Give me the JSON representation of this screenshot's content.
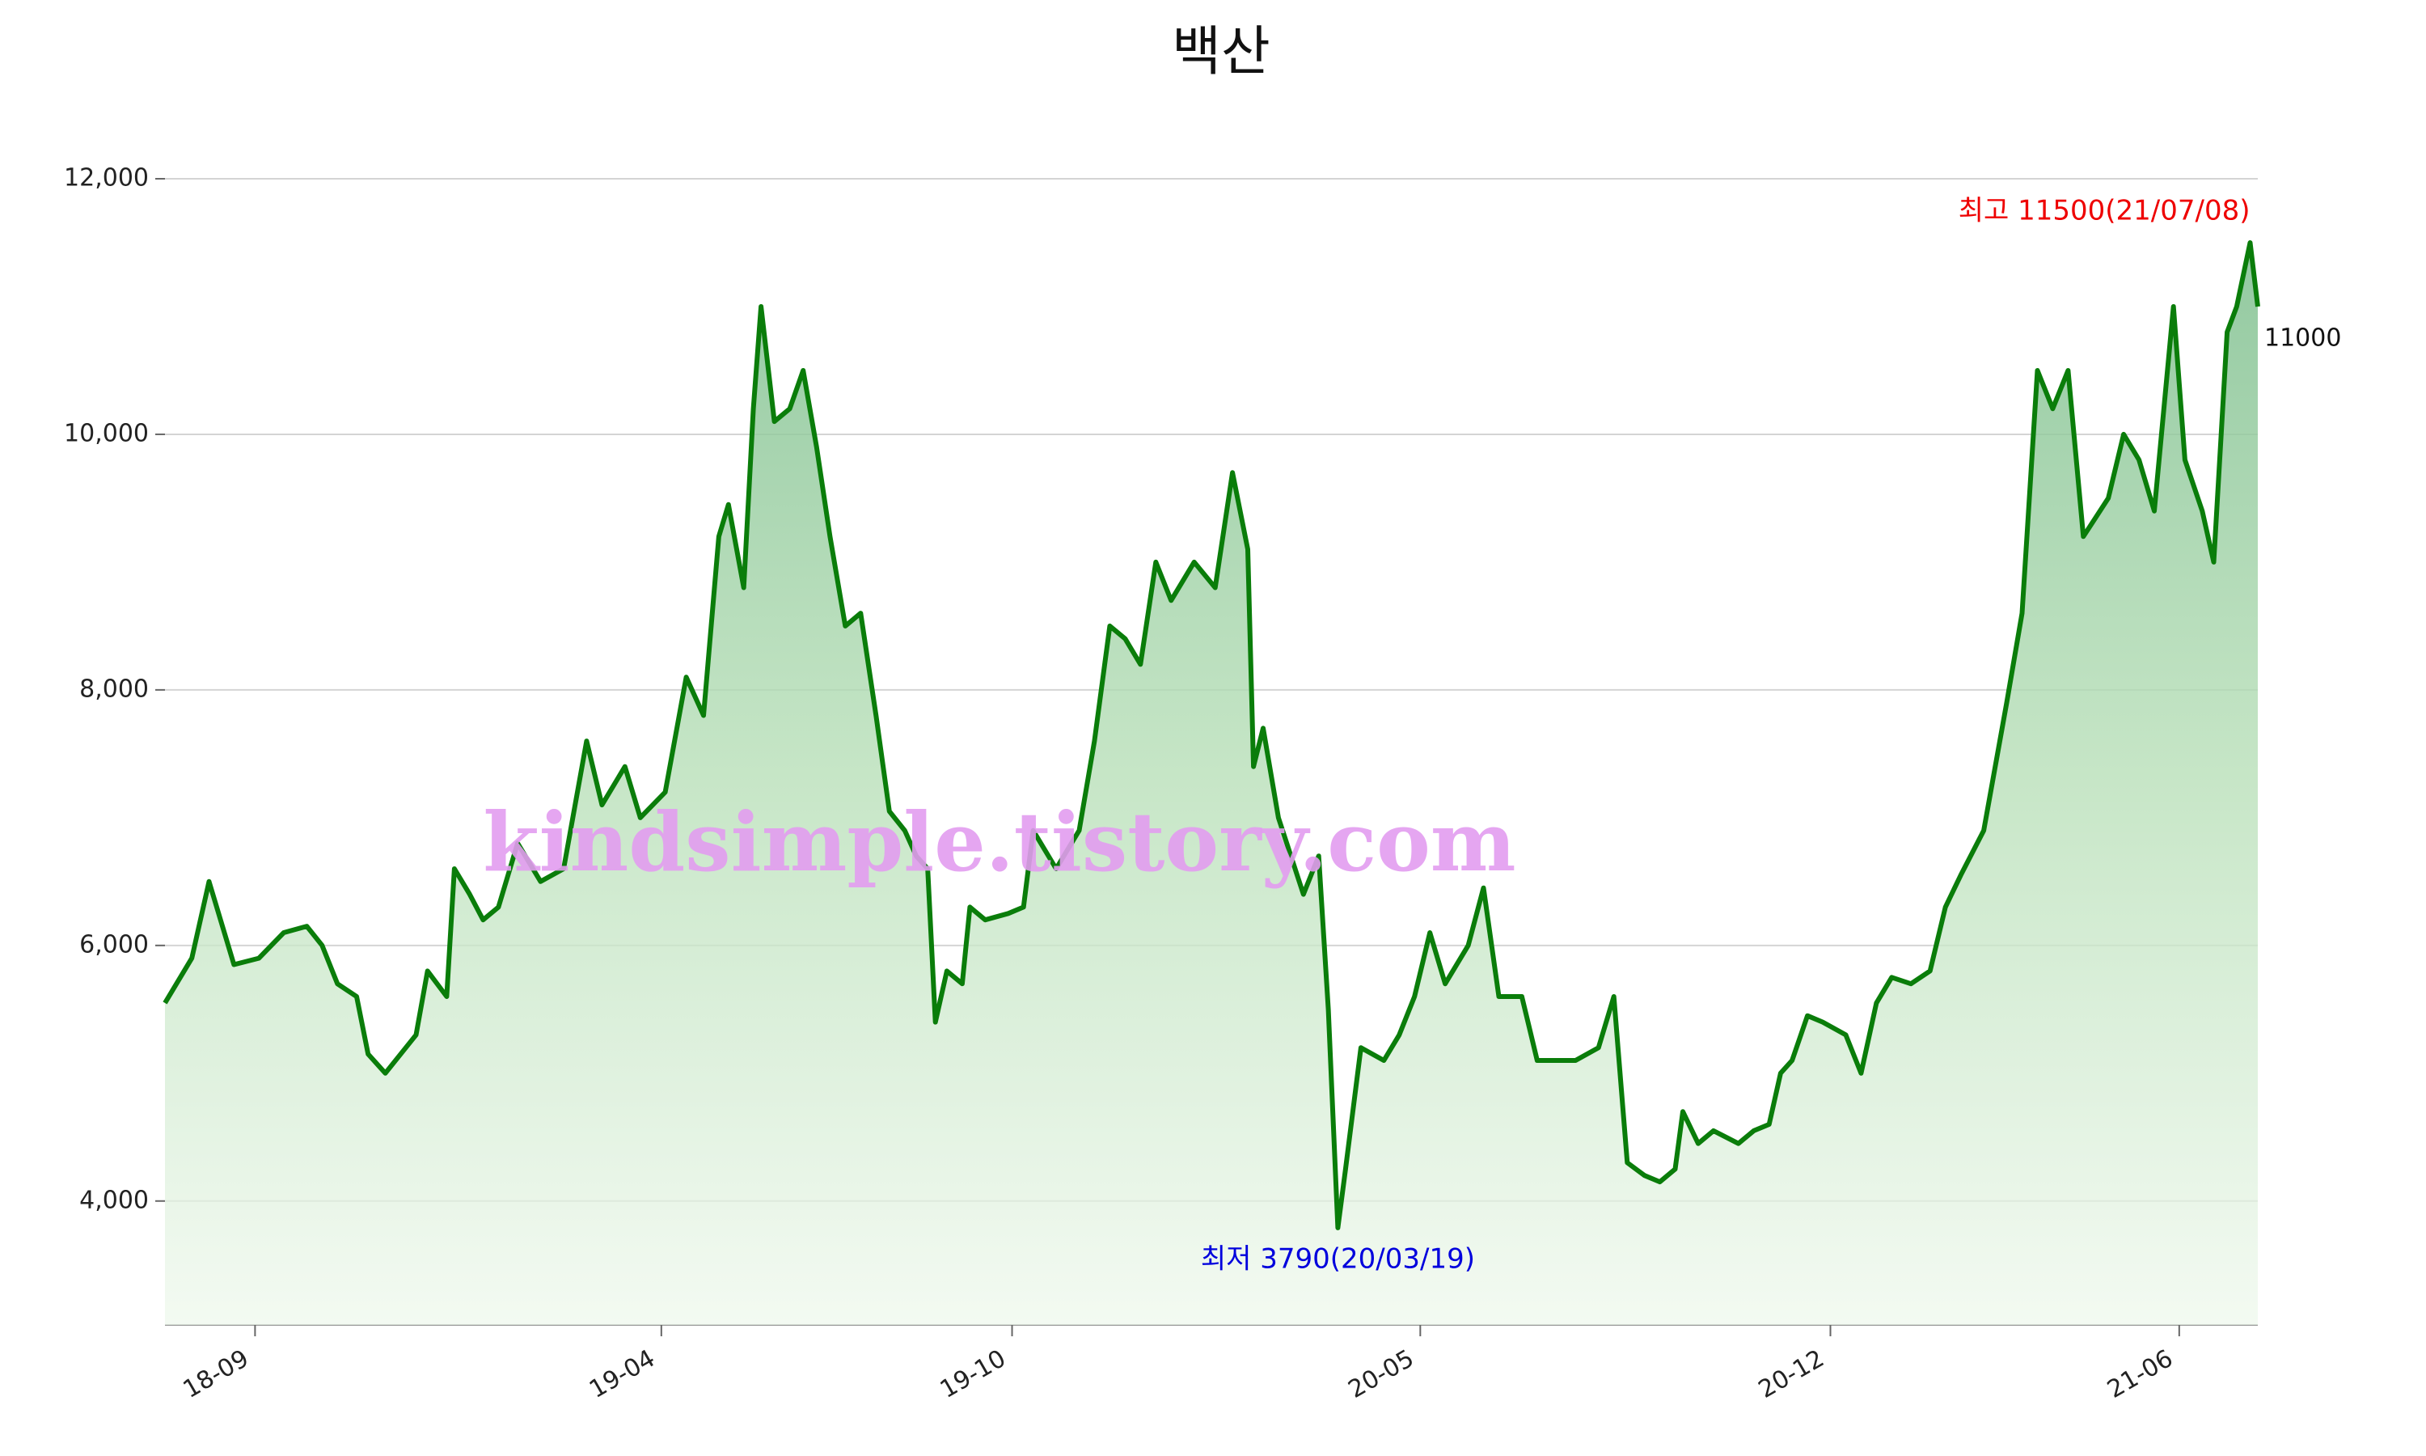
{
  "chart_data": {
    "type": "line",
    "title": "백산",
    "x": [
      "2018-07-16",
      "2018-07-30",
      "2018-08-08",
      "2018-08-21",
      "2018-09-03",
      "2018-09-16",
      "2018-09-28",
      "2018-10-06",
      "2018-10-14",
      "2018-10-24",
      "2018-10-30",
      "2018-11-08",
      "2018-11-24",
      "2018-11-30",
      "2018-12-10",
      "2018-12-14",
      "2018-12-22",
      "2018-12-29",
      "2019-01-06",
      "2019-01-16",
      "2019-01-28",
      "2019-02-09",
      "2019-02-21",
      "2019-03-01",
      "2019-03-13",
      "2019-03-21",
      "2019-04-03",
      "2019-04-14",
      "2019-04-23",
      "2019-05-01",
      "2019-05-06",
      "2019-05-14",
      "2019-05-19",
      "2019-05-23",
      "2019-05-30",
      "2019-06-07",
      "2019-06-14",
      "2019-06-21",
      "2019-06-28",
      "2019-07-06",
      "2019-07-14",
      "2019-07-22",
      "2019-07-29",
      "2019-08-06",
      "2019-08-12",
      "2019-08-18",
      "2019-08-22",
      "2019-08-28",
      "2019-09-05",
      "2019-09-09",
      "2019-09-17",
      "2019-09-29",
      "2019-10-07",
      "2019-10-12",
      "2019-10-24",
      "2019-11-05",
      "2019-11-13",
      "2019-11-21",
      "2019-11-29",
      "2019-12-07",
      "2019-12-15",
      "2019-12-23",
      "2020-01-04",
      "2020-01-15",
      "2020-01-24",
      "2020-02-01",
      "2020-02-04",
      "2020-02-09",
      "2020-02-17",
      "2020-03-01",
      "2020-03-09",
      "2020-03-14",
      "2020-03-19",
      "2020-03-23",
      "2020-03-31",
      "2020-04-12",
      "2020-04-20",
      "2020-04-28",
      "2020-05-06",
      "2020-05-14",
      "2020-05-26",
      "2020-06-03",
      "2020-06-11",
      "2020-06-23",
      "2020-07-01",
      "2020-07-09",
      "2020-07-21",
      "2020-08-02",
      "2020-08-10",
      "2020-08-17",
      "2020-08-26",
      "2020-09-03",
      "2020-09-11",
      "2020-09-15",
      "2020-09-23",
      "2020-10-01",
      "2020-10-14",
      "2020-10-22",
      "2020-10-30",
      "2020-11-05",
      "2020-11-11",
      "2020-11-19",
      "2020-11-27",
      "2020-12-09",
      "2020-12-17",
      "2020-12-25",
      "2021-01-02",
      "2021-01-12",
      "2021-01-22",
      "2021-01-30",
      "2021-02-07",
      "2021-02-19",
      "2021-03-03",
      "2021-03-11",
      "2021-03-19",
      "2021-03-27",
      "2021-04-04",
      "2021-04-12",
      "2021-04-25",
      "2021-05-03",
      "2021-05-11",
      "2021-05-19",
      "2021-05-29",
      "2021-06-04",
      "2021-06-13",
      "2021-06-19",
      "2021-06-26",
      "2021-07-01",
      "2021-07-08",
      "2021-07-12"
    ],
    "values": [
      5550,
      5900,
      6500,
      5850,
      5900,
      6100,
      6150,
      6000,
      5700,
      5600,
      5150,
      5000,
      5300,
      5800,
      5600,
      6600,
      6400,
      6200,
      6300,
      6800,
      6500,
      6600,
      7600,
      7100,
      7400,
      7000,
      7200,
      8100,
      7800,
      9200,
      9450,
      8800,
      10200,
      11000,
      10100,
      10200,
      10500,
      9900,
      9200,
      8500,
      8600,
      7800,
      7050,
      6900,
      6700,
      6600,
      5400,
      5800,
      5700,
      6300,
      6200,
      6250,
      6300,
      6900,
      6600,
      6900,
      7600,
      8500,
      8400,
      8200,
      9000,
      8700,
      9000,
      8800,
      9700,
      9100,
      7400,
      7700,
      7000,
      6400,
      6700,
      5500,
      3790,
      4250,
      5200,
      5100,
      5300,
      5600,
      6100,
      5700,
      6000,
      6450,
      5600,
      5600,
      5100,
      5100,
      5100,
      5200,
      5600,
      4300,
      4200,
      4150,
      4250,
      4700,
      4450,
      4550,
      4450,
      4550,
      4600,
      5000,
      5100,
      5450,
      5400,
      5300,
      5000,
      5550,
      5750,
      5700,
      5800,
      6300,
      6550,
      6900,
      7900,
      8600,
      10500,
      10200,
      10500,
      9200,
      9500,
      10000,
      9800,
      9400,
      11000,
      9800,
      9400,
      9000,
      10800,
      11000,
      11500,
      11000
    ],
    "color": "#0a7d0a",
    "xlim": [
      "2018-07-16",
      "2021-07-12"
    ],
    "xticks": [
      {
        "value": "2018-09-01",
        "label": "18-09"
      },
      {
        "value": "2019-04-01",
        "label": "19-04"
      },
      {
        "value": "2019-10-01",
        "label": "19-10"
      },
      {
        "value": "2020-05-01",
        "label": "20-05"
      },
      {
        "value": "2020-12-01",
        "label": "20-12"
      },
      {
        "value": "2021-06-01",
        "label": "21-06"
      }
    ],
    "ylim": [
      3030,
      12000
    ],
    "yticks": [
      {
        "value": 4000,
        "label": "4,000"
      },
      {
        "value": 6000,
        "label": "6,000"
      },
      {
        "value": 8000,
        "label": "8,000"
      },
      {
        "value": 10000,
        "label": "10,000"
      },
      {
        "value": 12000,
        "label": "12,000"
      }
    ],
    "grid": true,
    "annotations": [
      {
        "text": "최고 11500(21/07/08)",
        "color": "#ee0000",
        "kind": "max"
      },
      {
        "text": "최저 3790(20/03/19)",
        "color": "#0000dd",
        "kind": "min"
      }
    ],
    "watermark": "kindsimple.tistory.com"
  }
}
